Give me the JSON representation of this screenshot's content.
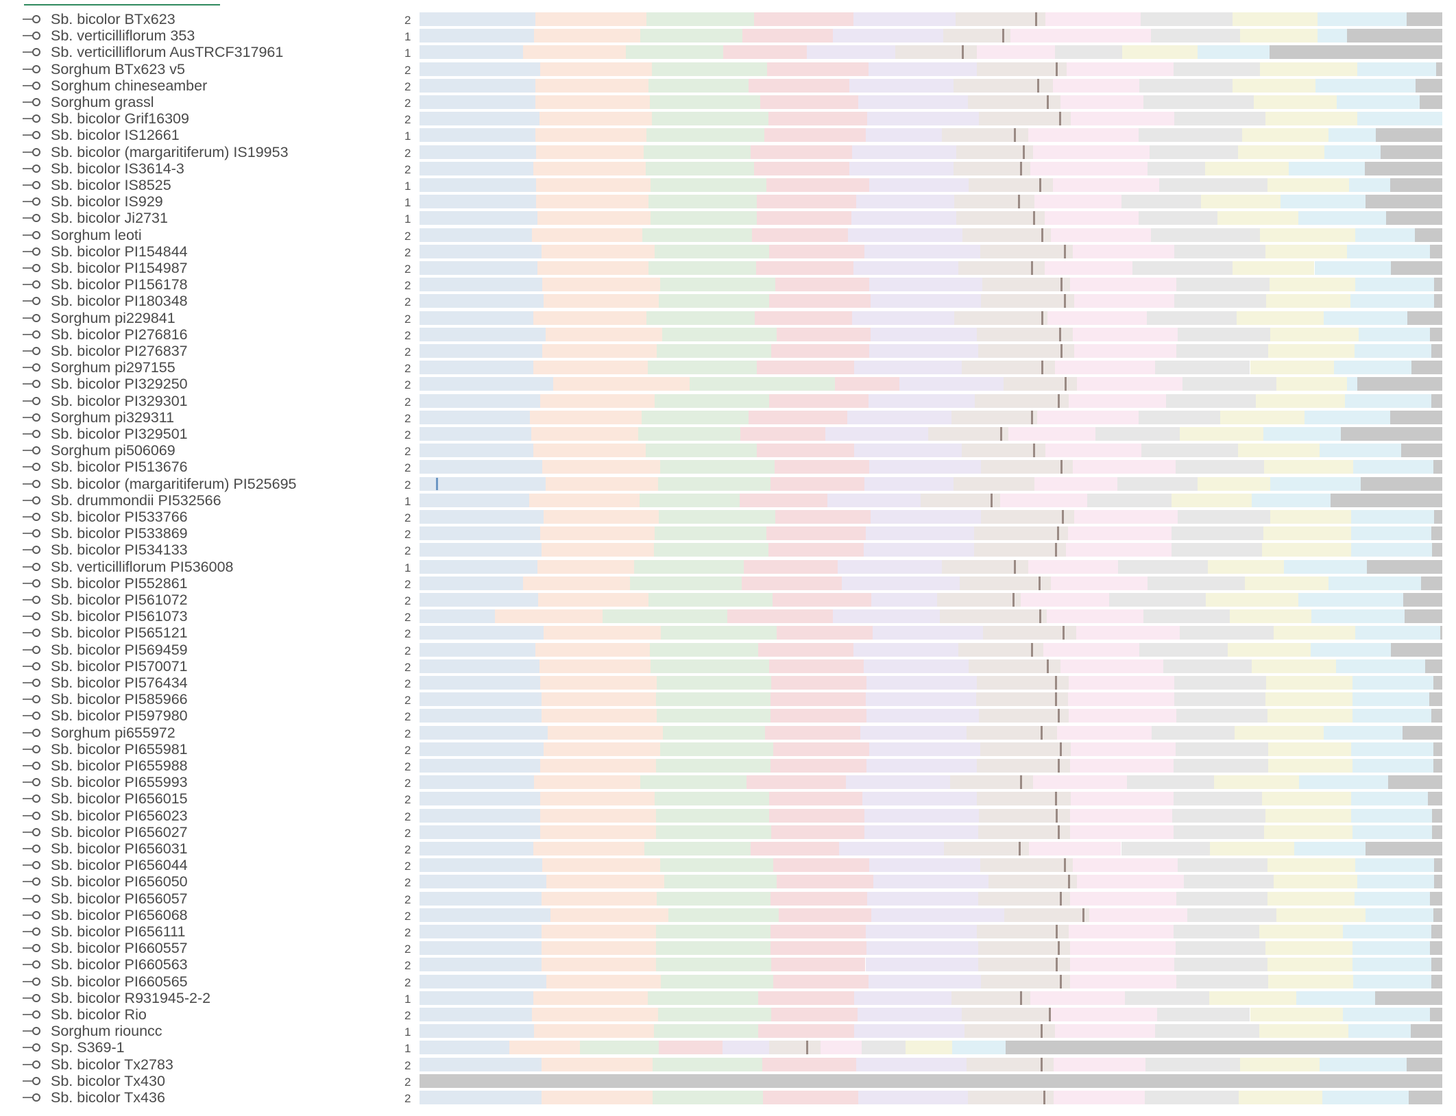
{
  "palette": [
    "#dfe8f1",
    "#fbe7dc",
    "#e1eedf",
    "#f6dcde",
    "#ebe6f4",
    "#ece6e3",
    "#fae9f2",
    "#e7e7e7",
    "#f5f4dc",
    "#dff0f6",
    "#c8c8c8"
  ],
  "tick_color": "#9a8a84",
  "legend_line_color": "#2f8a5e",
  "node_icon": "circle-node-icon",
  "rows": [
    {
      "name": "Sb. bicolor BTx623",
      "ploidy": "2",
      "bounds": [
        0,
        0.113,
        0.222,
        0.327,
        0.424,
        0.524,
        0.612,
        0.705,
        0.795,
        0.878,
        0.965,
        1
      ],
      "tick": 0.602
    },
    {
      "name": "Sb. verticilliflorum 353",
      "ploidy": "1",
      "bounds": [
        0,
        0.112,
        0.216,
        0.316,
        0.404,
        0.512,
        0.578,
        0.715,
        0.802,
        0.878,
        0.907,
        1
      ],
      "tick": 0.57
    },
    {
      "name": "Sb. verticilliflorum AusTRCF317961",
      "ploidy": "1",
      "bounds": [
        0,
        0.101,
        0.202,
        0.297,
        0.379,
        0.465,
        0.545,
        0.621,
        0.687,
        0.761,
        0.831,
        1
      ],
      "tick": 0.53
    },
    {
      "name": "Sorghum BTx623 v5",
      "ploidy": "2",
      "bounds": [
        0,
        0.118,
        0.227,
        0.34,
        0.439,
        0.545,
        0.633,
        0.737,
        0.822,
        0.917,
        0.994,
        1
      ],
      "tick": 0.622
    },
    {
      "name": "Sorghum chineseamber",
      "ploidy": "2",
      "bounds": [
        0,
        0.113,
        0.224,
        0.322,
        0.42,
        0.522,
        0.619,
        0.704,
        0.795,
        0.876,
        0.974,
        1
      ],
      "tick": 0.604
    },
    {
      "name": "Sorghum grassl",
      "ploidy": "2",
      "bounds": [
        0,
        0.113,
        0.225,
        0.333,
        0.429,
        0.536,
        0.627,
        0.708,
        0.816,
        0.897,
        0.978,
        1
      ],
      "tick": 0.613
    },
    {
      "name": "Sb. bicolor Grif16309",
      "ploidy": "2",
      "bounds": [
        0,
        0.117,
        0.227,
        0.341,
        0.438,
        0.547,
        0.637,
        0.738,
        0.827,
        0.917,
        1,
        1
      ],
      "tick": 0.625
    },
    {
      "name": "Sb. bicolor IS12661",
      "ploidy": "1",
      "bounds": [
        0,
        0.113,
        0.222,
        0.337,
        0.436,
        0.511,
        0.595,
        0.703,
        0.804,
        0.889,
        0.935,
        1
      ],
      "tick": 0.581
    },
    {
      "name": "Sb. bicolor (margaritiferum) IS19953",
      "ploidy": "2",
      "bounds": [
        0,
        0.114,
        0.219,
        0.324,
        0.423,
        0.525,
        0.6,
        0.714,
        0.8,
        0.885,
        0.94,
        1
      ],
      "tick": 0.59
    },
    {
      "name": "Sb. bicolor IS3614-3",
      "ploidy": "2",
      "bounds": [
        0,
        0.111,
        0.221,
        0.327,
        0.42,
        0.522,
        0.597,
        0.712,
        0.768,
        0.85,
        0.924,
        1
      ],
      "tick": 0.587
    },
    {
      "name": "Sb. bicolor IS8525",
      "ploidy": "1",
      "bounds": [
        0,
        0.114,
        0.226,
        0.339,
        0.44,
        0.537,
        0.619,
        0.723,
        0.829,
        0.909,
        0.949,
        1
      ],
      "tick": 0.606
    },
    {
      "name": "Sb. bicolor IS929",
      "ploidy": "1",
      "bounds": [
        0,
        0.114,
        0.224,
        0.33,
        0.427,
        0.523,
        0.601,
        0.686,
        0.764,
        0.842,
        0.925,
        1
      ],
      "tick": 0.585
    },
    {
      "name": "Sb. bicolor Ji2731",
      "ploidy": "1",
      "bounds": [
        0,
        0.115,
        0.226,
        0.33,
        0.422,
        0.525,
        0.611,
        0.703,
        0.78,
        0.859,
        0.945,
        1
      ],
      "tick": 0.6
    },
    {
      "name": "Sorghum leoti",
      "ploidy": "2",
      "bounds": [
        0,
        0.11,
        0.218,
        0.325,
        0.419,
        0.531,
        0.617,
        0.715,
        0.822,
        0.915,
        0.973,
        1
      ],
      "tick": 0.608
    },
    {
      "name": "Sb. bicolor PI154844",
      "ploidy": "2",
      "bounds": [
        0,
        0.119,
        0.23,
        0.342,
        0.435,
        0.548,
        0.639,
        0.738,
        0.827,
        0.907,
        0.988,
        1
      ],
      "tick": 0.63
    },
    {
      "name": "Sb. bicolor PI154987",
      "ploidy": "2",
      "bounds": [
        0,
        0.115,
        0.224,
        0.329,
        0.424,
        0.527,
        0.611,
        0.697,
        0.795,
        0.875,
        0.95,
        1
      ],
      "tick": 0.598
    },
    {
      "name": "Sb. bicolor PI156178",
      "ploidy": "2",
      "bounds": [
        0,
        0.12,
        0.235,
        0.348,
        0.44,
        0.55,
        0.636,
        0.74,
        0.831,
        0.915,
        0.992,
        1
      ],
      "tick": 0.627
    },
    {
      "name": "Sb. bicolor PI180348",
      "ploidy": "2",
      "bounds": [
        0,
        0.121,
        0.234,
        0.342,
        0.441,
        0.549,
        0.64,
        0.738,
        0.828,
        0.91,
        0.992,
        1
      ],
      "tick": 0.63
    },
    {
      "name": "Sorghum pi229841",
      "ploidy": "2",
      "bounds": [
        0,
        0.111,
        0.222,
        0.328,
        0.423,
        0.523,
        0.614,
        0.711,
        0.799,
        0.884,
        0.966,
        1
      ],
      "tick": 0.608
    },
    {
      "name": "Sb. bicolor PI276816",
      "ploidy": "2",
      "bounds": [
        0,
        0.123,
        0.237,
        0.349,
        0.441,
        0.545,
        0.639,
        0.741,
        0.832,
        0.918,
        0.988,
        1
      ],
      "tick": 0.625
    },
    {
      "name": "Sb. bicolor PI276837",
      "ploidy": "2",
      "bounds": [
        0,
        0.12,
        0.232,
        0.344,
        0.44,
        0.546,
        0.64,
        0.74,
        0.83,
        0.914,
        0.989,
        1
      ],
      "tick": 0.627
    },
    {
      "name": "Sorghum pi297155",
      "ploidy": "2",
      "bounds": [
        0,
        0.111,
        0.223,
        0.33,
        0.425,
        0.53,
        0.621,
        0.719,
        0.812,
        0.894,
        0.97,
        1
      ],
      "tick": 0.608
    },
    {
      "name": "Sb. bicolor PI329250",
      "ploidy": "2",
      "bounds": [
        0,
        0.131,
        0.264,
        0.406,
        0.469,
        0.571,
        0.643,
        0.746,
        0.838,
        0.907,
        0.917,
        1
      ],
      "tick": 0.631
    },
    {
      "name": "Sb. bicolor PI329301",
      "ploidy": "2",
      "bounds": [
        0,
        0.118,
        0.23,
        0.342,
        0.439,
        0.543,
        0.635,
        0.73,
        0.818,
        0.905,
        0.989,
        1
      ],
      "tick": 0.624
    },
    {
      "name": "Sorghum pi329311",
      "ploidy": "2",
      "bounds": [
        0,
        0.108,
        0.217,
        0.322,
        0.418,
        0.52,
        0.604,
        0.703,
        0.783,
        0.865,
        0.949,
        1
      ],
      "tick": 0.598
    },
    {
      "name": "Sb. bicolor PI329501",
      "ploidy": "2",
      "bounds": [
        0,
        0.109,
        0.214,
        0.314,
        0.397,
        0.497,
        0.576,
        0.661,
        0.743,
        0.825,
        0.901,
        1
      ],
      "tick": 0.568
    },
    {
      "name": "Sorghum pi506069",
      "ploidy": "2",
      "bounds": [
        0,
        0.111,
        0.221,
        0.33,
        0.425,
        0.53,
        0.612,
        0.706,
        0.8,
        0.88,
        0.96,
        1
      ],
      "tick": 0.6
    },
    {
      "name": "Sb. bicolor PI513676",
      "ploidy": "2",
      "bounds": [
        0,
        0.12,
        0.235,
        0.347,
        0.44,
        0.549,
        0.639,
        0.739,
        0.826,
        0.913,
        0.991,
        1
      ],
      "tick": 0.627
    },
    {
      "name": "Sb. bicolor (margaritiferum) PI525695",
      "ploidy": "2",
      "bounds": [
        0,
        0.123,
        0.233,
        0.343,
        0.435,
        0.522,
        0.601,
        0.682,
        0.761,
        0.832,
        0.92,
        1
      ],
      "tick": -1,
      "blue": 0.016
    },
    {
      "name": "Sb. drummondii PI532566",
      "ploidy": "1",
      "bounds": [
        0,
        0.107,
        0.215,
        0.313,
        0.399,
        0.49,
        0.568,
        0.653,
        0.735,
        0.814,
        0.891,
        1
      ],
      "tick": 0.558
    },
    {
      "name": "Sb. bicolor PI533766",
      "ploidy": "2",
      "bounds": [
        0,
        0.121,
        0.234,
        0.348,
        0.441,
        0.549,
        0.64,
        0.741,
        0.832,
        0.911,
        0.992,
        1
      ],
      "tick": 0.628
    },
    {
      "name": "Sb. bicolor PI533869",
      "ploidy": "2",
      "bounds": [
        0,
        0.118,
        0.23,
        0.339,
        0.436,
        0.542,
        0.634,
        0.735,
        0.825,
        0.911,
        0.989,
        1
      ],
      "tick": 0.623
    },
    {
      "name": "Sb. bicolor PI534133",
      "ploidy": "2",
      "bounds": [
        0,
        0.119,
        0.229,
        0.341,
        0.434,
        0.542,
        0.632,
        0.735,
        0.824,
        0.911,
        0.99,
        1
      ],
      "tick": 0.621
    },
    {
      "name": "Sb. verticilliflorum PI536008",
      "ploidy": "1",
      "bounds": [
        0,
        0.115,
        0.21,
        0.317,
        0.409,
        0.511,
        0.595,
        0.683,
        0.771,
        0.845,
        0.926,
        1
      ],
      "tick": 0.581
    },
    {
      "name": "Sb. bicolor PI552861",
      "ploidy": "2",
      "bounds": [
        0,
        0.101,
        0.206,
        0.315,
        0.413,
        0.528,
        0.617,
        0.712,
        0.807,
        0.889,
        0.979,
        1
      ],
      "tick": 0.605
    },
    {
      "name": "Sb. bicolor PI561072",
      "ploidy": "2",
      "bounds": [
        0,
        0.116,
        0.224,
        0.345,
        0.442,
        0.506,
        0.588,
        0.674,
        0.769,
        0.859,
        0.962,
        1
      ],
      "tick": 0.58
    },
    {
      "name": "Sb. bicolor PI561073",
      "ploidy": "2",
      "bounds": [
        0,
        0.074,
        0.179,
        0.301,
        0.404,
        0.509,
        0.613,
        0.708,
        0.792,
        0.872,
        0.963,
        1
      ],
      "tick": 0.606
    },
    {
      "name": "Sb. bicolor PI565121",
      "ploidy": "2",
      "bounds": [
        0,
        0.121,
        0.236,
        0.349,
        0.443,
        0.551,
        0.642,
        0.743,
        0.835,
        0.915,
        0.998,
        1
      ],
      "tick": 0.629
    },
    {
      "name": "Sb. bicolor PI569459",
      "ploidy": "2",
      "bounds": [
        0,
        0.113,
        0.225,
        0.331,
        0.424,
        0.527,
        0.61,
        0.704,
        0.79,
        0.871,
        0.95,
        1
      ],
      "tick": 0.598
    },
    {
      "name": "Sb. bicolor PI570071",
      "ploidy": "2",
      "bounds": [
        0,
        0.117,
        0.226,
        0.342,
        0.434,
        0.537,
        0.627,
        0.727,
        0.814,
        0.896,
        0.983,
        1
      ],
      "tick": 0.613
    },
    {
      "name": "Sb. bicolor PI576434",
      "ploidy": "2",
      "bounds": [
        0,
        0.118,
        0.232,
        0.344,
        0.437,
        0.545,
        0.635,
        0.738,
        0.828,
        0.912,
        0.991,
        1
      ],
      "tick": 0.621
    },
    {
      "name": "Sb. bicolor PI585966",
      "ploidy": "2",
      "bounds": [
        0,
        0.119,
        0.231,
        0.343,
        0.436,
        0.544,
        0.634,
        0.738,
        0.827,
        0.912,
        0.987,
        1
      ],
      "tick": 0.621
    },
    {
      "name": "Sb. bicolor PI597980",
      "ploidy": "2",
      "bounds": [
        0,
        0.119,
        0.232,
        0.343,
        0.437,
        0.547,
        0.635,
        0.74,
        0.829,
        0.912,
        0.989,
        1
      ],
      "tick": 0.624
    },
    {
      "name": "Sorghum pi655972",
      "ploidy": "2",
      "bounds": [
        0,
        0.125,
        0.238,
        0.338,
        0.431,
        0.535,
        0.623,
        0.716,
        0.797,
        0.884,
        0.961,
        1
      ],
      "tick": 0.607
    },
    {
      "name": "Sb. bicolor PI655981",
      "ploidy": "2",
      "bounds": [
        0,
        0.121,
        0.235,
        0.346,
        0.44,
        0.548,
        0.637,
        0.739,
        0.83,
        0.911,
        0.991,
        1
      ],
      "tick": 0.626
    },
    {
      "name": "Sb. bicolor PI655988",
      "ploidy": "2",
      "bounds": [
        0,
        0.118,
        0.231,
        0.343,
        0.437,
        0.545,
        0.636,
        0.737,
        0.83,
        0.912,
        0.991,
        1
      ],
      "tick": 0.624
    },
    {
      "name": "Sb. bicolor PI655993",
      "ploidy": "2",
      "bounds": [
        0,
        0.112,
        0.216,
        0.32,
        0.417,
        0.519,
        0.6,
        0.692,
        0.777,
        0.86,
        0.947,
        1
      ],
      "tick": 0.587
    },
    {
      "name": "Sb. bicolor PI656015",
      "ploidy": "2",
      "bounds": [
        0,
        0.118,
        0.23,
        0.342,
        0.433,
        0.545,
        0.637,
        0.737,
        0.824,
        0.911,
        0.986,
        1
      ],
      "tick": 0.621
    },
    {
      "name": "Sb. bicolor PI656023",
      "ploidy": "2",
      "bounds": [
        0,
        0.118,
        0.231,
        0.342,
        0.435,
        0.547,
        0.636,
        0.736,
        0.827,
        0.911,
        0.99,
        1
      ],
      "tick": 0.622
    },
    {
      "name": "Sb. bicolor PI656027",
      "ploidy": "2",
      "bounds": [
        0,
        0.118,
        0.231,
        0.344,
        0.435,
        0.546,
        0.636,
        0.737,
        0.826,
        0.912,
        0.99,
        1
      ],
      "tick": 0.624
    },
    {
      "name": "Sb. bicolor PI656031",
      "ploidy": "2",
      "bounds": [
        0,
        0.111,
        0.22,
        0.324,
        0.41,
        0.513,
        0.596,
        0.686,
        0.773,
        0.855,
        0.925,
        1
      ],
      "tick": 0.586
    },
    {
      "name": "Sb. bicolor PI656044",
      "ploidy": "2",
      "bounds": [
        0,
        0.12,
        0.235,
        0.346,
        0.44,
        0.548,
        0.639,
        0.741,
        0.829,
        0.915,
        0.992,
        1
      ],
      "tick": 0.63
    },
    {
      "name": "Sb. bicolor PI656050",
      "ploidy": "2",
      "bounds": [
        0,
        0.124,
        0.239,
        0.349,
        0.444,
        0.556,
        0.643,
        0.747,
        0.835,
        0.917,
        0.992,
        1
      ],
      "tick": 0.634
    },
    {
      "name": "Sb. bicolor PI656057",
      "ploidy": "2",
      "bounds": [
        0,
        0.119,
        0.232,
        0.343,
        0.438,
        0.546,
        0.636,
        0.74,
        0.829,
        0.914,
        0.988,
        1
      ],
      "tick": 0.626
    },
    {
      "name": "Sb. bicolor PI656068",
      "ploidy": "2",
      "bounds": [
        0,
        0.128,
        0.243,
        0.351,
        0.442,
        0.572,
        0.655,
        0.751,
        0.838,
        0.925,
        0.991,
        1
      ],
      "tick": 0.648
    },
    {
      "name": "Sb. bicolor PI656111",
      "ploidy": "2",
      "bounds": [
        0,
        0.119,
        0.231,
        0.343,
        0.436,
        0.545,
        0.635,
        0.737,
        0.821,
        0.903,
        0.989,
        1
      ],
      "tick": 0.622
    },
    {
      "name": "Sb. bicolor PI660557",
      "ploidy": "2",
      "bounds": [
        0,
        0.119,
        0.231,
        0.343,
        0.437,
        0.546,
        0.636,
        0.739,
        0.827,
        0.912,
        0.988,
        1
      ],
      "tick": 0.624
    },
    {
      "name": "Sb. bicolor PI660563",
      "ploidy": "2",
      "bounds": [
        0,
        0.119,
        0.231,
        0.344,
        0.436,
        0.546,
        0.636,
        0.738,
        0.829,
        0.912,
        0.989,
        1
      ],
      "tick": 0.622
    },
    {
      "name": "Sb. bicolor PI660565",
      "ploidy": "2",
      "bounds": [
        0,
        0.124,
        0.236,
        0.346,
        0.439,
        0.549,
        0.636,
        0.74,
        0.83,
        0.913,
        0.989,
        1
      ],
      "tick": 0.626
    },
    {
      "name": "Sb. bicolor R931945-2-2",
      "ploidy": "1",
      "bounds": [
        0,
        0.111,
        0.223,
        0.331,
        0.425,
        0.52,
        0.597,
        0.69,
        0.772,
        0.857,
        0.934,
        1
      ],
      "tick": 0.587
    },
    {
      "name": "Sb. bicolor Rio",
      "ploidy": "2",
      "bounds": [
        0,
        0.11,
        0.233,
        0.344,
        0.428,
        0.53,
        0.617,
        0.721,
        0.812,
        0.903,
        0.988,
        1
      ],
      "tick": 0.615
    },
    {
      "name": "Sorghum riouncc",
      "ploidy": "1",
      "bounds": [
        0,
        0.112,
        0.229,
        0.331,
        0.425,
        0.533,
        0.621,
        0.719,
        0.821,
        0.908,
        0.969,
        1
      ],
      "tick": 0.607
    },
    {
      "name": "Sp. S369-1",
      "ploidy": "1",
      "bounds": [
        0,
        0.088,
        0.157,
        0.234,
        0.296,
        0.342,
        0.392,
        0.432,
        0.475,
        0.521,
        0.573,
        1
      ],
      "tick": 0.378
    },
    {
      "name": "Sb. bicolor Tx2783",
      "ploidy": "2",
      "bounds": [
        0,
        0.119,
        0.228,
        0.335,
        0.427,
        0.535,
        0.62,
        0.71,
        0.802,
        0.88,
        0.965,
        1
      ],
      "tick": 0.607
    },
    {
      "name": "Sb. bicolor Tx430",
      "ploidy": "2",
      "bounds": [
        0,
        0,
        0,
        0,
        0,
        0,
        0,
        0,
        0,
        0,
        0,
        1
      ],
      "tick": -1
    },
    {
      "name": "Sb. bicolor Tx436",
      "ploidy": "2",
      "bounds": [
        0,
        0.119,
        0.228,
        0.336,
        0.429,
        0.536,
        0.62,
        0.709,
        0.801,
        0.883,
        0.967,
        1
      ],
      "tick": 0.61
    }
  ]
}
